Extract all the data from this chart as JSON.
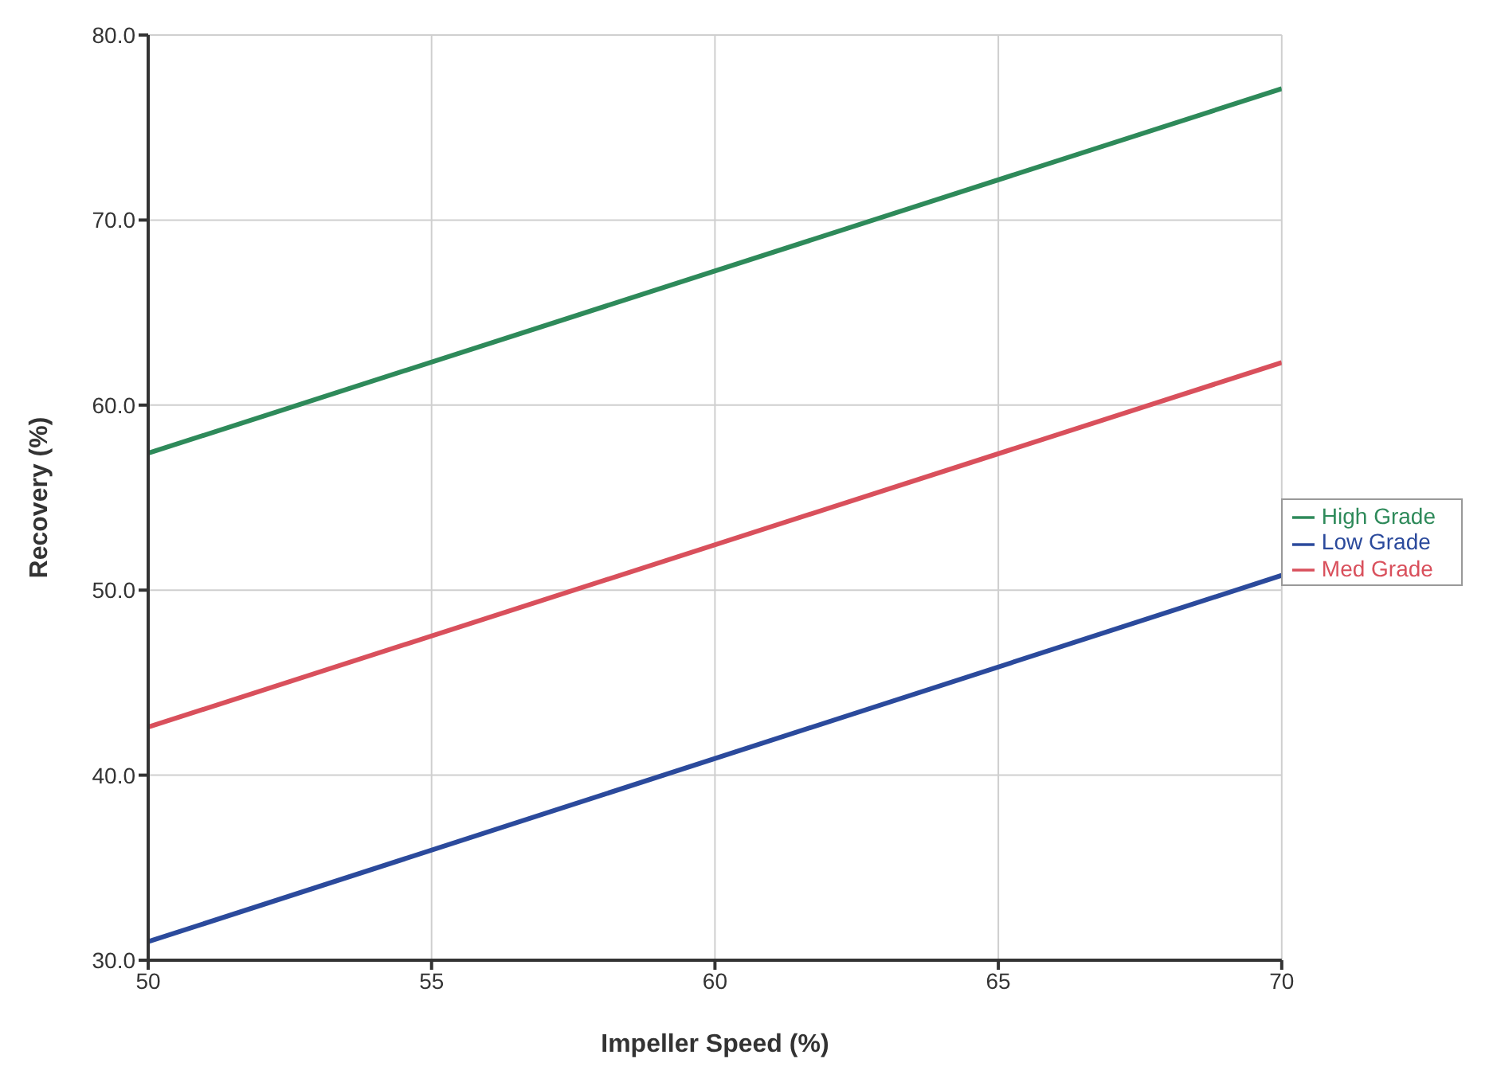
{
  "chart_data": {
    "type": "line",
    "xlabel": "Impeller Speed (%)",
    "ylabel": "Recovery (%)",
    "x": [
      50,
      70
    ],
    "series": [
      {
        "name": "Low Grade",
        "color": "#2b4a9c",
        "values": [
          31.0,
          50.8
        ]
      },
      {
        "name": "Med Grade",
        "color": "#d9505c",
        "values": [
          42.6,
          62.3
        ]
      },
      {
        "name": "High Grade",
        "color": "#2e8a5a",
        "values": [
          57.4,
          77.1
        ]
      }
    ],
    "xlim": [
      50,
      70
    ],
    "xticks": [
      50,
      55,
      60,
      65,
      70
    ],
    "ylim": [
      30,
      80
    ],
    "yticks": [
      {
        "value": 30,
        "label": "30.0"
      },
      {
        "value": 40,
        "label": "40.0"
      },
      {
        "value": 50,
        "label": "50.0"
      },
      {
        "value": 60,
        "label": "60.0"
      },
      {
        "value": 70,
        "label": "70.0"
      },
      {
        "value": 80,
        "label": "80.0"
      }
    ],
    "grid": true,
    "legend": "right",
    "marker": "none",
    "line_style": "solid"
  }
}
